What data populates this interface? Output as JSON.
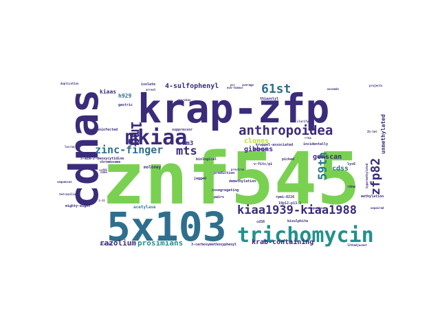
{
  "cloud": {
    "words": [
      {
        "text": "znf545",
        "color": "#7ad151"
      },
      {
        "text": "krap-zfp",
        "color": "#3b2b7a"
      },
      {
        "text": "cdnas",
        "color": "#3b2b7a"
      },
      {
        "text": "5x103",
        "color": "#2f6f8e"
      },
      {
        "text": "trichomycin",
        "color": "#21918c"
      },
      {
        "text": "mkiaa",
        "color": "#3b2b7a"
      },
      {
        "text": "anthropoidea",
        "color": "#3b2b7a"
      },
      {
        "text": "kiaa1939-kiaa1988",
        "color": "#3b2b7a"
      },
      {
        "text": "zfp82",
        "color": "#3b2b7a"
      },
      {
        "text": "61st",
        "color": "#2f6f8e"
      },
      {
        "text": "59th",
        "color": "#2a788e"
      },
      {
        "text": "zinc-finger",
        "color": "#2f6f8e"
      },
      {
        "text": "mts",
        "color": "#3b2b7a"
      },
      {
        "text": "1mg",
        "color": "#3b2b7a"
      },
      {
        "text": "razolium",
        "color": "#3b2b7a"
      },
      {
        "text": "prosimians",
        "color": "#21918c"
      },
      {
        "text": "krab-containing",
        "color": "#3b2b7a"
      },
      {
        "text": "4-sulfophenyl",
        "color": "#3b2b7a"
      },
      {
        "text": "genscan",
        "color": "#3b2b7a"
      },
      {
        "text": "clones",
        "color": "#b5de2b"
      },
      {
        "text": "gibbons",
        "color": "#3b2b7a"
      },
      {
        "text": "cdss",
        "color": "#2f6f8e"
      },
      {
        "text": "unmethylated",
        "color": "#3b2b7a"
      },
      {
        "text": "km3",
        "color": "#3b2b7a"
      },
      {
        "text": "kiaas",
        "color": "#3b2b7a"
      },
      {
        "text": "h929",
        "color": "#2f6f8e"
      },
      {
        "text": "moloney",
        "color": "#3b2b7a"
      },
      {
        "text": "mighty-eight",
        "color": "#3b2b7a"
      },
      {
        "text": "3-carboxymethoxyphenyl",
        "color": "#3b2b7a"
      },
      {
        "text": "suppressor",
        "color": "#3b2b7a"
      },
      {
        "text": "gastric",
        "color": "#3b2b7a"
      },
      {
        "text": "isolate",
        "color": "#3b2b7a"
      },
      {
        "text": "chromosome",
        "color": "#3b2b7a"
      },
      {
        "text": "5-aza-2-deoxycytidine",
        "color": "#3b2b7a"
      },
      {
        "text": "uninfected",
        "color": "#3b2b7a"
      },
      {
        "text": "thiazolyl",
        "color": "#3b2b7a"
      },
      {
        "text": "kruppel-associated",
        "color": "#3b2b7a"
      },
      {
        "text": "incidentally",
        "color": "#3b2b7a"
      },
      {
        "text": "monkeys",
        "color": "#3b2b7a"
      },
      {
        "text": "prediction",
        "color": "#3b2b7a"
      },
      {
        "text": "cosegregating",
        "color": "#3b2b7a"
      },
      {
        "text": "pairs",
        "color": "#3b2b7a"
      },
      {
        "text": "bisulphite",
        "color": "#3b2b7a"
      },
      {
        "text": "methylation",
        "color": "#3b2b7a"
      },
      {
        "text": "jagged",
        "color": "#3b2b7a"
      },
      {
        "text": "acetylase",
        "color": "#2a788e"
      },
      {
        "text": "cd38",
        "color": "#3b2b7a"
      },
      {
        "text": "rdna",
        "color": "#3b2b7a"
      },
      {
        "text": "lys6",
        "color": "#3b2b7a"
      },
      {
        "text": "picked",
        "color": "#3b2b7a"
      },
      {
        "text": "v-fitc/pi",
        "color": "#3b2b7a"
      },
      {
        "text": "demethylation",
        "color": "#3b2b7a"
      },
      {
        "text": "biological",
        "color": "#3b2b7a"
      },
      {
        "text": "rpmi-8226",
        "color": "#3b2b7a"
      },
      {
        "text": "19p12-p13.1",
        "color": "#3b2b7a"
      },
      {
        "text": "mir-106",
        "color": "#3b2b7a"
      },
      {
        "text": "smarches",
        "color": "#3b2b7a"
      },
      {
        "text": "arrest",
        "color": "#3b2b7a"
      },
      {
        "text": "non-tumour",
        "color": "#3b2b7a"
      },
      {
        "text": "duplication",
        "color": "#3b2b7a"
      },
      {
        "text": "clarify",
        "color": "#3b2b7a"
      },
      {
        "text": "exceeds",
        "color": "#3b2b7a"
      },
      {
        "text": "projects",
        "color": "#3b2b7a"
      },
      {
        "text": "provirus",
        "color": "#3b2b7a"
      },
      {
        "text": "average",
        "color": "#3b2b7a"
      },
      {
        "text": "pcr",
        "color": "#3b2b7a"
      },
      {
        "text": "2h-tet",
        "color": "#3b2b7a"
      },
      {
        "text": "i-ii",
        "color": "#3b2b7a"
      },
      {
        "text": "cdna",
        "color": "#3b2b7a"
      },
      {
        "text": "cnf91",
        "color": "#3b2b7a"
      },
      {
        "text": "hypermethylated",
        "color": "#3b2b7a"
      },
      {
        "text": "12thadjacent",
        "color": "#3b2b7a"
      },
      {
        "text": "rrna",
        "color": "#3b2b7a"
      },
      {
        "text": "unpaired",
        "color": "#3b2b7a"
      },
      {
        "text": "lncrna",
        "color": "#3b2b7a"
      },
      {
        "text": "tetrazolium",
        "color": "#3b2b7a"
      },
      {
        "text": "categories",
        "color": "#3b2b7a"
      },
      {
        "text": "sequences",
        "color": "#3b2b7a"
      }
    ]
  }
}
